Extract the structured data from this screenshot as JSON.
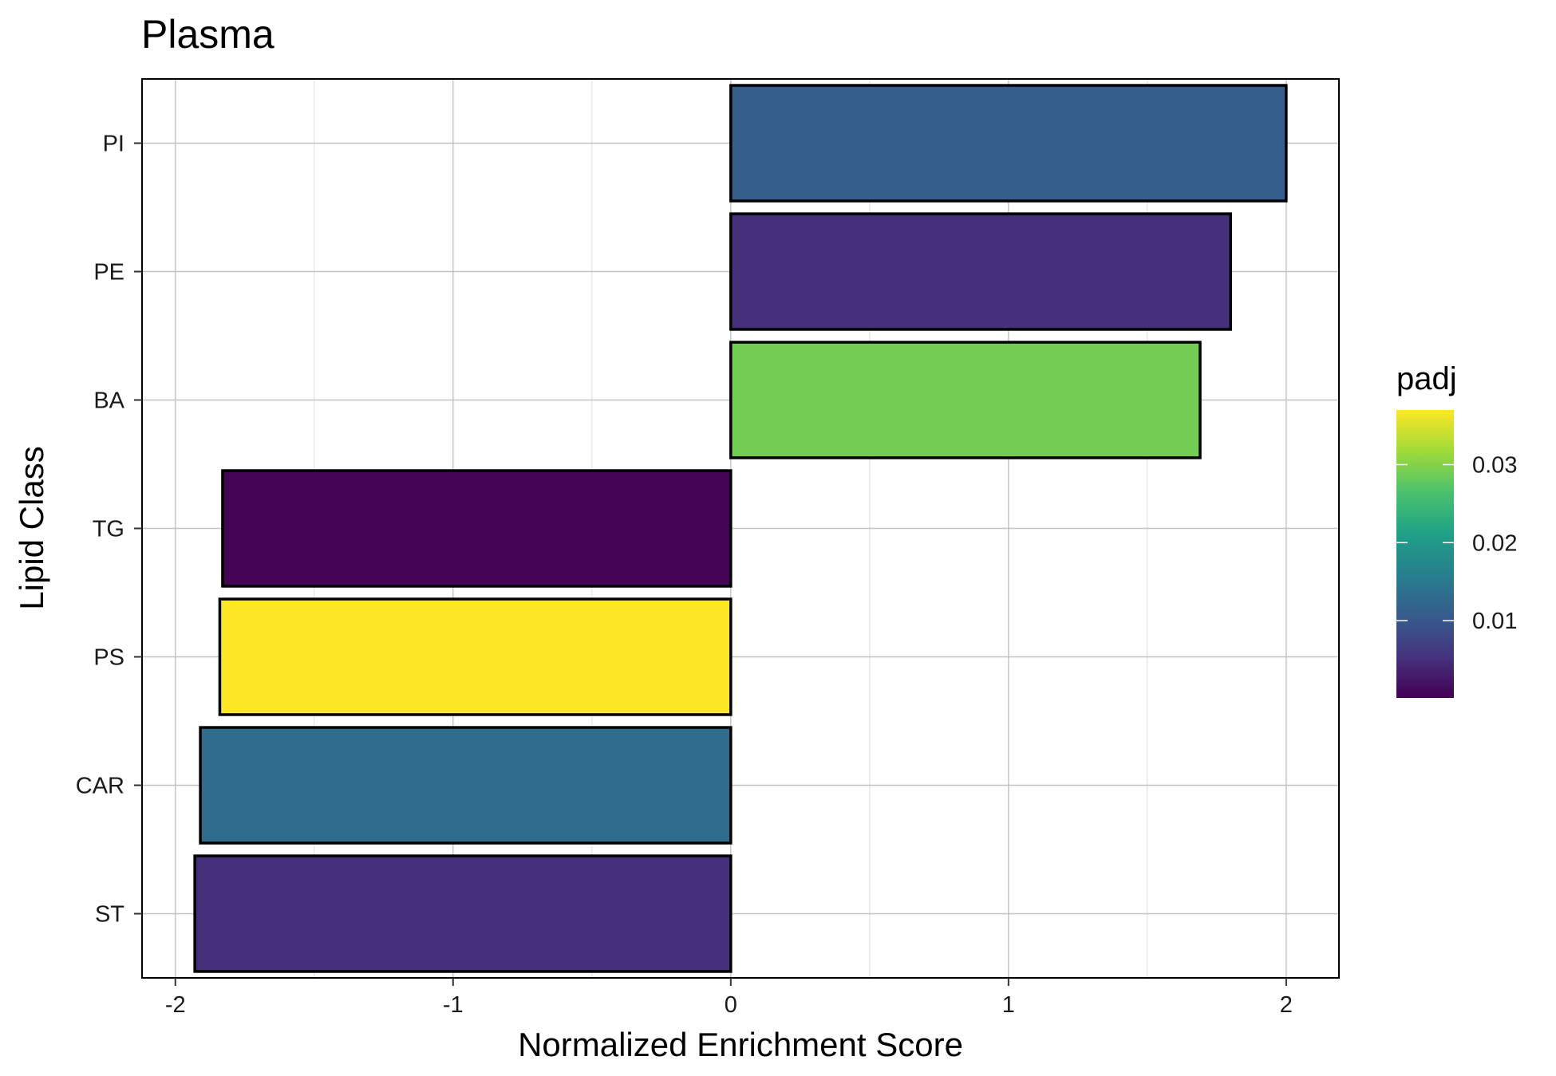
{
  "chart_data": {
    "type": "bar",
    "orientation": "horizontal",
    "title": "Plasma",
    "xlabel": "Normalized Enrichment Score",
    "ylabel": "Lipid Class",
    "xlim": [
      -2.12,
      2.19
    ],
    "x_ticks": [
      -2,
      -1,
      0,
      1,
      2
    ],
    "x_tick_labels": [
      "-2",
      "-1",
      "0",
      "1",
      "2"
    ],
    "grid": true,
    "categories": [
      "PI",
      "PE",
      "BA",
      "TG",
      "PS",
      "CAR",
      "ST"
    ],
    "values": [
      2.0,
      1.8,
      1.69,
      -1.83,
      -1.84,
      -1.91,
      -1.93
    ],
    "padj": [
      0.011,
      0.005,
      0.029,
      0.0005,
      0.037,
      0.013,
      0.005
    ],
    "legend": {
      "title": "padj",
      "position": "right",
      "range": [
        0.0001,
        0.037
      ],
      "ticks": [
        0.01,
        0.02,
        0.03
      ],
      "tick_labels": [
        "0.01",
        "0.02",
        "0.03"
      ],
      "colormap": [
        "#440154",
        "#46337e",
        "#365c8d",
        "#277f8e",
        "#1fa187",
        "#4ac16d",
        "#a0da39",
        "#fde725"
      ]
    },
    "bar_outline_color": "#000000"
  }
}
